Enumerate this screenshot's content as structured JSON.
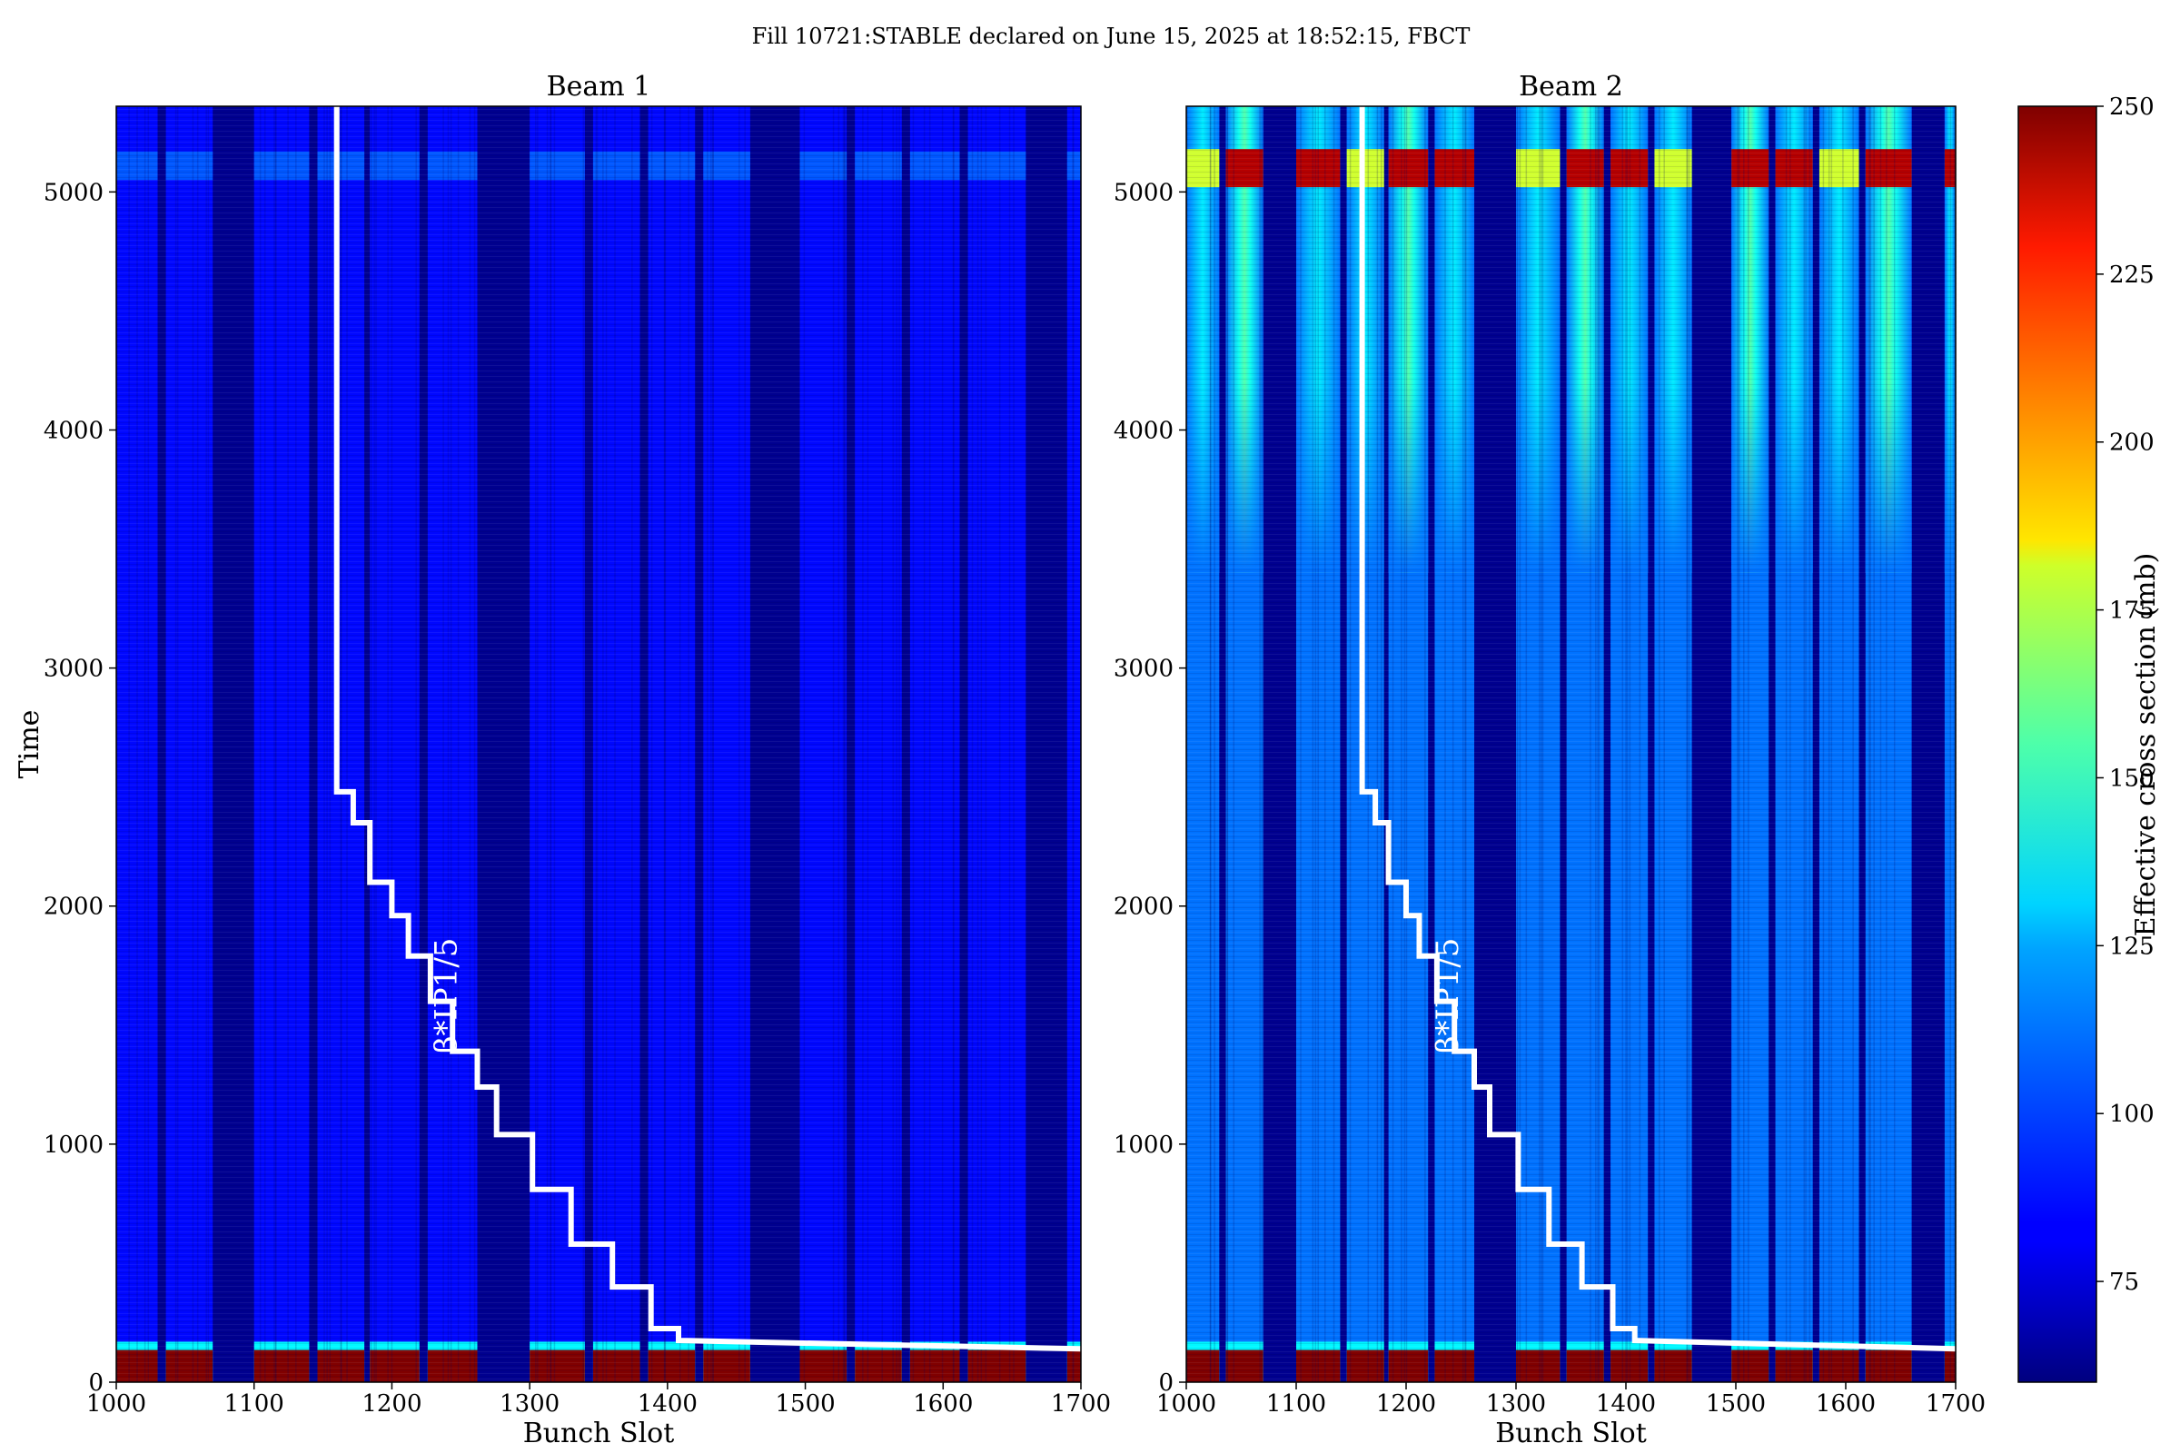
{
  "figure_title": "Fill 10721:STABLE declared on June 15, 2025 at 18:52:15, FBCT",
  "colors": {
    "colormap": "jet",
    "empty_slot": "#00008f",
    "beta_line": "#ffffff"
  },
  "chart_data": [
    {
      "type": "heatmap",
      "title": "Beam 1",
      "xlabel": "Bunch Slot",
      "ylabel": "Time",
      "xlim": [
        1000,
        1700
      ],
      "ylim": [
        0,
        5360
      ],
      "xticks": [
        1000,
        1100,
        1200,
        1300,
        1400,
        1500,
        1600,
        1700
      ],
      "yticks": [
        0,
        1000,
        2000,
        3000,
        4000,
        5000
      ],
      "filled_slot_bands": [
        [
          1000,
          1030
        ],
        [
          1036,
          1070
        ],
        [
          1100,
          1140
        ],
        [
          1146,
          1180
        ],
        [
          1184,
          1220
        ],
        [
          1226,
          1262
        ],
        [
          1300,
          1340
        ],
        [
          1346,
          1380
        ],
        [
          1386,
          1420
        ],
        [
          1426,
          1460
        ],
        [
          1496,
          1530
        ],
        [
          1536,
          1570
        ],
        [
          1576,
          1612
        ],
        [
          1618,
          1660
        ],
        [
          1690,
          1700
        ]
      ],
      "typical_cross_section_mb": 85,
      "burnoff_region": {
        "time_range": [
          0,
          170
        ],
        "cross_section_mb": 250
      },
      "annotation": "β*IP1/5",
      "beta_star_step_line": [
        [
          1160,
          5360
        ],
        [
          1160,
          2480
        ],
        [
          1172,
          2480
        ],
        [
          1172,
          2350
        ],
        [
          1184,
          2350
        ],
        [
          1184,
          2100
        ],
        [
          1200,
          2100
        ],
        [
          1200,
          1960
        ],
        [
          1212,
          1960
        ],
        [
          1212,
          1790
        ],
        [
          1228,
          1790
        ],
        [
          1228,
          1600
        ],
        [
          1244,
          1600
        ],
        [
          1244,
          1390
        ],
        [
          1262,
          1390
        ],
        [
          1262,
          1240
        ],
        [
          1276,
          1240
        ],
        [
          1276,
          1040
        ],
        [
          1302,
          1040
        ],
        [
          1302,
          810
        ],
        [
          1330,
          810
        ],
        [
          1330,
          580
        ],
        [
          1360,
          580
        ],
        [
          1360,
          400
        ],
        [
          1388,
          400
        ],
        [
          1388,
          225
        ],
        [
          1408,
          225
        ],
        [
          1408,
          175
        ],
        [
          1700,
          140
        ]
      ]
    },
    {
      "type": "heatmap",
      "title": "Beam 2",
      "xlabel": "Bunch Slot",
      "ylabel": "",
      "xlim": [
        1000,
        1700
      ],
      "ylim": [
        0,
        5360
      ],
      "xticks": [
        1000,
        1100,
        1200,
        1300,
        1400,
        1500,
        1600,
        1700
      ],
      "yticks": [
        0,
        1000,
        2000,
        3000,
        4000,
        5000
      ],
      "filled_slot_bands": [
        [
          1000,
          1030
        ],
        [
          1036,
          1070
        ],
        [
          1100,
          1140
        ],
        [
          1146,
          1180
        ],
        [
          1184,
          1220
        ],
        [
          1226,
          1262
        ],
        [
          1300,
          1340
        ],
        [
          1346,
          1380
        ],
        [
          1386,
          1420
        ],
        [
          1426,
          1460
        ],
        [
          1496,
          1530
        ],
        [
          1536,
          1570
        ],
        [
          1576,
          1612
        ],
        [
          1618,
          1660
        ],
        [
          1690,
          1700
        ]
      ],
      "typical_cross_section_mb": 105,
      "late_fill_hotspot": {
        "time_range": [
          5020,
          5180
        ],
        "cross_section_mb": 240
      },
      "burnoff_region": {
        "time_range": [
          0,
          170
        ],
        "cross_section_mb": 250
      },
      "annotation": "β*IP1/5",
      "beta_star_step_line": [
        [
          1160,
          5360
        ],
        [
          1160,
          2480
        ],
        [
          1172,
          2480
        ],
        [
          1172,
          2350
        ],
        [
          1184,
          2350
        ],
        [
          1184,
          2100
        ],
        [
          1200,
          2100
        ],
        [
          1200,
          1960
        ],
        [
          1212,
          1960
        ],
        [
          1212,
          1790
        ],
        [
          1228,
          1790
        ],
        [
          1228,
          1600
        ],
        [
          1244,
          1600
        ],
        [
          1244,
          1390
        ],
        [
          1262,
          1390
        ],
        [
          1262,
          1240
        ],
        [
          1276,
          1240
        ],
        [
          1276,
          1040
        ],
        [
          1302,
          1040
        ],
        [
          1302,
          810
        ],
        [
          1330,
          810
        ],
        [
          1330,
          580
        ],
        [
          1360,
          580
        ],
        [
          1360,
          400
        ],
        [
          1388,
          400
        ],
        [
          1388,
          225
        ],
        [
          1408,
          225
        ],
        [
          1408,
          175
        ],
        [
          1700,
          140
        ]
      ]
    }
  ],
  "colorbar": {
    "label": "Effective cross section (mb)",
    "range": [
      60,
      250
    ],
    "ticks": [
      75,
      100,
      125,
      150,
      175,
      200,
      225,
      250
    ]
  }
}
